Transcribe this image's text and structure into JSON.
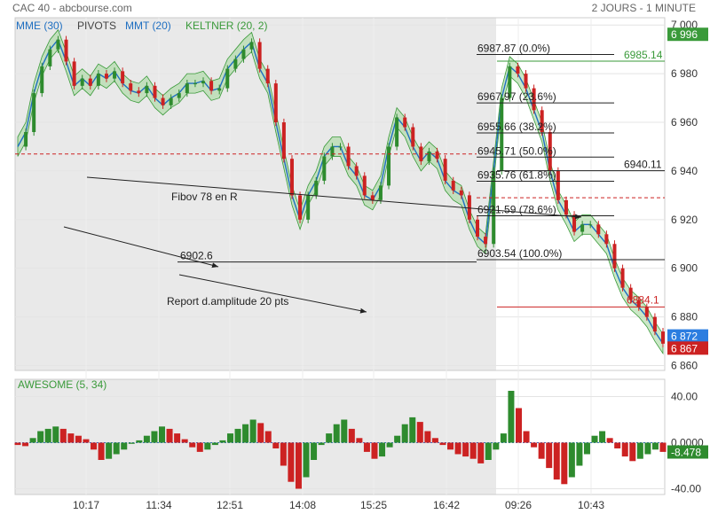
{
  "header": {
    "title": "CAC 40 - abcbourse.com",
    "timeframe": "2 JOURS - 1 MINUTE"
  },
  "legend": [
    {
      "label": "MME (30)",
      "color": "#1f6fc1"
    },
    {
      "label": "PIVOTS",
      "color": "#444444"
    },
    {
      "label": "MMT (20)",
      "color": "#1f6fc1"
    },
    {
      "label": "KELTNER (20, 2)",
      "color": "#3a9a3a"
    }
  ],
  "colors": {
    "up": "#2e8b2e",
    "down": "#cc2222",
    "band": "#a8d8a0",
    "mme": "#1f6fc1",
    "mmt": "#2b8fd0",
    "shade": "#e9e9e9"
  },
  "chart_data": [
    {
      "type": "line",
      "title": "CAC 40",
      "x_ticks": [
        "10:17",
        "11:34",
        "12:51",
        "14:08",
        "15:25",
        "16:42",
        "09:26",
        "10:43"
      ],
      "y_ticks": [
        7000,
        6980,
        6960,
        6940,
        6920,
        6900,
        6880,
        6860
      ],
      "ylim": [
        6858,
        7003
      ],
      "y_tick_labels": [
        "7 000",
        "6 980",
        "6 960",
        "6 940",
        "6 920",
        "6 900",
        "6 880",
        "6 860"
      ],
      "series": [
        {
          "values": [
            6950,
            6956,
            6972,
            6983,
            6990,
            6994,
            6985,
            6975,
            6978,
            6975,
            6980,
            6978,
            6981,
            6976,
            6973,
            6972,
            6975,
            6970,
            6967,
            6970,
            6972,
            6976,
            6976,
            6977,
            6973,
            6974,
            6982,
            6986,
            6990,
            6993,
            6982,
            6976,
            6960,
            6945,
            6930,
            6920,
            6930,
            6936,
            6946,
            6950,
            6950,
            6942,
            6938,
            6930,
            6928,
            6934,
            6950,
            6962,
            6958,
            6950,
            6944,
            6948,
            6945,
            6936,
            6932,
            6930,
            6920,
            6913,
            6910,
            6940,
            6970,
            6983,
            6980,
            6974,
            6965,
            6956,
            6940,
            6928,
            6922,
            6915,
            6918,
            6918,
            6914,
            6910,
            6900,
            6892,
            6887,
            6884,
            6880,
            6874,
            6869
          ]
        }
      ],
      "price_badges": [
        {
          "value": "6 996",
          "kind": "high",
          "color": "#3a9a3a"
        },
        {
          "value": "6 872",
          "kind": "last-blue",
          "color": "#2b7de0"
        },
        {
          "value": "6 867",
          "kind": "last",
          "color": "#cc2222"
        }
      ],
      "fibonacci": [
        {
          "price": 6987.87,
          "label": "6987.87  (0.0%)"
        },
        {
          "price": 6967.97,
          "label": "6967.97  (23.6%)"
        },
        {
          "price": 6955.66,
          "label": "6955.66  (38.2%)"
        },
        {
          "price": 6945.71,
          "label": "6945.71  (50.0%)"
        },
        {
          "price": 6935.76,
          "label": "6935.76  (61.8%)"
        },
        {
          "price": 6921.59,
          "label": "6921.59  (78.6%)"
        },
        {
          "price": 6903.54,
          "label": "6903.54  (100.0%)"
        }
      ],
      "levels": [
        {
          "price": 6985.14,
          "label": "6985.14",
          "color": "#3a9a3a"
        },
        {
          "price": 6940.11,
          "label": "6940.11",
          "color": "#222222"
        },
        {
          "price": 6884.1,
          "label": "6884.1",
          "color": "#cc2222"
        },
        {
          "price": 6902.6,
          "label": "6902.6",
          "color": "#222222"
        }
      ],
      "annotations": [
        {
          "text": "Fibov 78 en R"
        },
        {
          "text": "Report d.amplitude 20 pts"
        }
      ]
    },
    {
      "type": "bar",
      "title": "AWESOME (5, 34)",
      "y_ticks": [
        40,
        0,
        -40
      ],
      "y_tick_labels": [
        "40.00",
        "0.0000",
        "-40.00"
      ],
      "ylim": [
        -45,
        55
      ],
      "last_value": "-8.478",
      "values": [
        -2,
        -3,
        4,
        10,
        12,
        14,
        12,
        8,
        6,
        3,
        -6,
        -15,
        -14,
        -10,
        -6,
        -1,
        2,
        6,
        10,
        14,
        12,
        8,
        3,
        -4,
        -8,
        -6,
        -2,
        2,
        8,
        12,
        16,
        20,
        17,
        10,
        -5,
        -20,
        -34,
        -40,
        -30,
        -15,
        -2,
        8,
        16,
        20,
        12,
        4,
        -8,
        -14,
        -12,
        -4,
        6,
        16,
        22,
        18,
        10,
        4,
        -2,
        -6,
        -10,
        -12,
        -14,
        -18,
        -15,
        -6,
        8,
        45,
        30,
        10,
        -4,
        -14,
        -22,
        -32,
        -36,
        -30,
        -20,
        -10,
        6,
        10,
        4,
        -5,
        -12,
        -16,
        -14,
        -10,
        -6,
        -8
      ]
    }
  ],
  "footer_time_labels": [
    "10:17",
    "11:34",
    "12:51",
    "14:08",
    "15:25",
    "16:42",
    "09:26",
    "10:43"
  ]
}
